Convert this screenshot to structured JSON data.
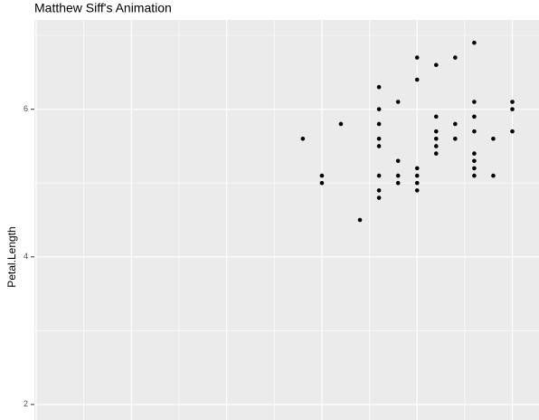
{
  "chart_data": {
    "type": "scatter",
    "title": "Matthew Siff's Animation",
    "y_label": "Petal.Length",
    "x": [
      1.4,
      1.5,
      1.5,
      1.6,
      1.7,
      1.8,
      1.8,
      1.8,
      1.8,
      1.8,
      1.8,
      1.8,
      1.8,
      1.9,
      1.9,
      1.9,
      1.9,
      2.0,
      2.0,
      2.0,
      2.0,
      2.0,
      2.0,
      2.1,
      2.1,
      2.1,
      2.1,
      2.1,
      2.1,
      2.2,
      2.2,
      2.2,
      2.3,
      2.3,
      2.3,
      2.3,
      2.3,
      2.3,
      2.3,
      2.3,
      2.4,
      2.4,
      2.5,
      2.5,
      2.5
    ],
    "y": [
      5.6,
      5.1,
      5.0,
      5.8,
      4.5,
      6.3,
      6.0,
      5.8,
      5.6,
      5.5,
      5.1,
      4.9,
      4.8,
      6.1,
      5.3,
      5.1,
      5.0,
      6.7,
      6.4,
      5.2,
      5.1,
      5.0,
      4.9,
      6.6,
      5.9,
      5.7,
      5.6,
      5.5,
      5.4,
      6.7,
      5.8,
      5.6,
      6.9,
      6.1,
      5.9,
      5.7,
      5.4,
      5.3,
      5.2,
      5.1,
      5.6,
      5.1,
      6.1,
      6.0,
      5.7
    ],
    "color": "#000000",
    "xlim": [
      0,
      2.64
    ],
    "xticks": [
      0,
      0.5,
      1,
      1.5,
      2,
      2.5
    ],
    "ylim": [
      1.79,
      7.21
    ],
    "yticks": [
      2,
      4,
      6
    ],
    "grid": true
  }
}
